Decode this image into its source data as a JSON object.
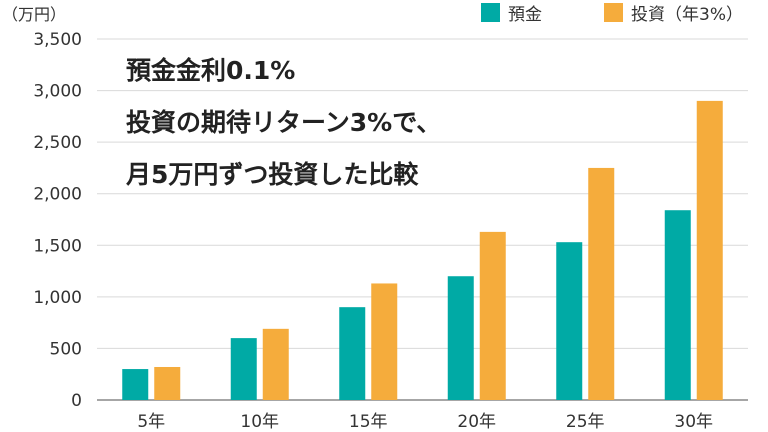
{
  "chart_data": {
    "type": "bar",
    "title": "",
    "xlabel": "",
    "ylabel": "",
    "y_unit": "（万円）",
    "categories": [
      "5年",
      "10年",
      "15年",
      "20年",
      "25年",
      "30年"
    ],
    "series": [
      {
        "name": "預金",
        "color": "#00aaa5",
        "values": [
          300,
          600,
          900,
          1200,
          1530,
          1840
        ]
      },
      {
        "name": "投資（年3%）",
        "color": "#f5ac3c",
        "values": [
          320,
          690,
          1130,
          1630,
          2250,
          2900
        ]
      }
    ],
    "ylim": [
      0,
      3500
    ],
    "yticks": [
      0,
      500,
      1000,
      1500,
      2000,
      2500,
      3000,
      3500
    ],
    "ytick_labels": [
      "0",
      "500",
      "1,000",
      "1,500",
      "2,000",
      "2,500",
      "3,000",
      "3,500"
    ],
    "grid": true,
    "legend_position": "top-right",
    "annotation_lines": [
      "預金金利0.1%",
      "投資の期待リターン3%で、",
      "月5万円ずつ投資した比較"
    ]
  },
  "colors": {
    "grid": "#d9d9d9",
    "axis": "#888888"
  }
}
